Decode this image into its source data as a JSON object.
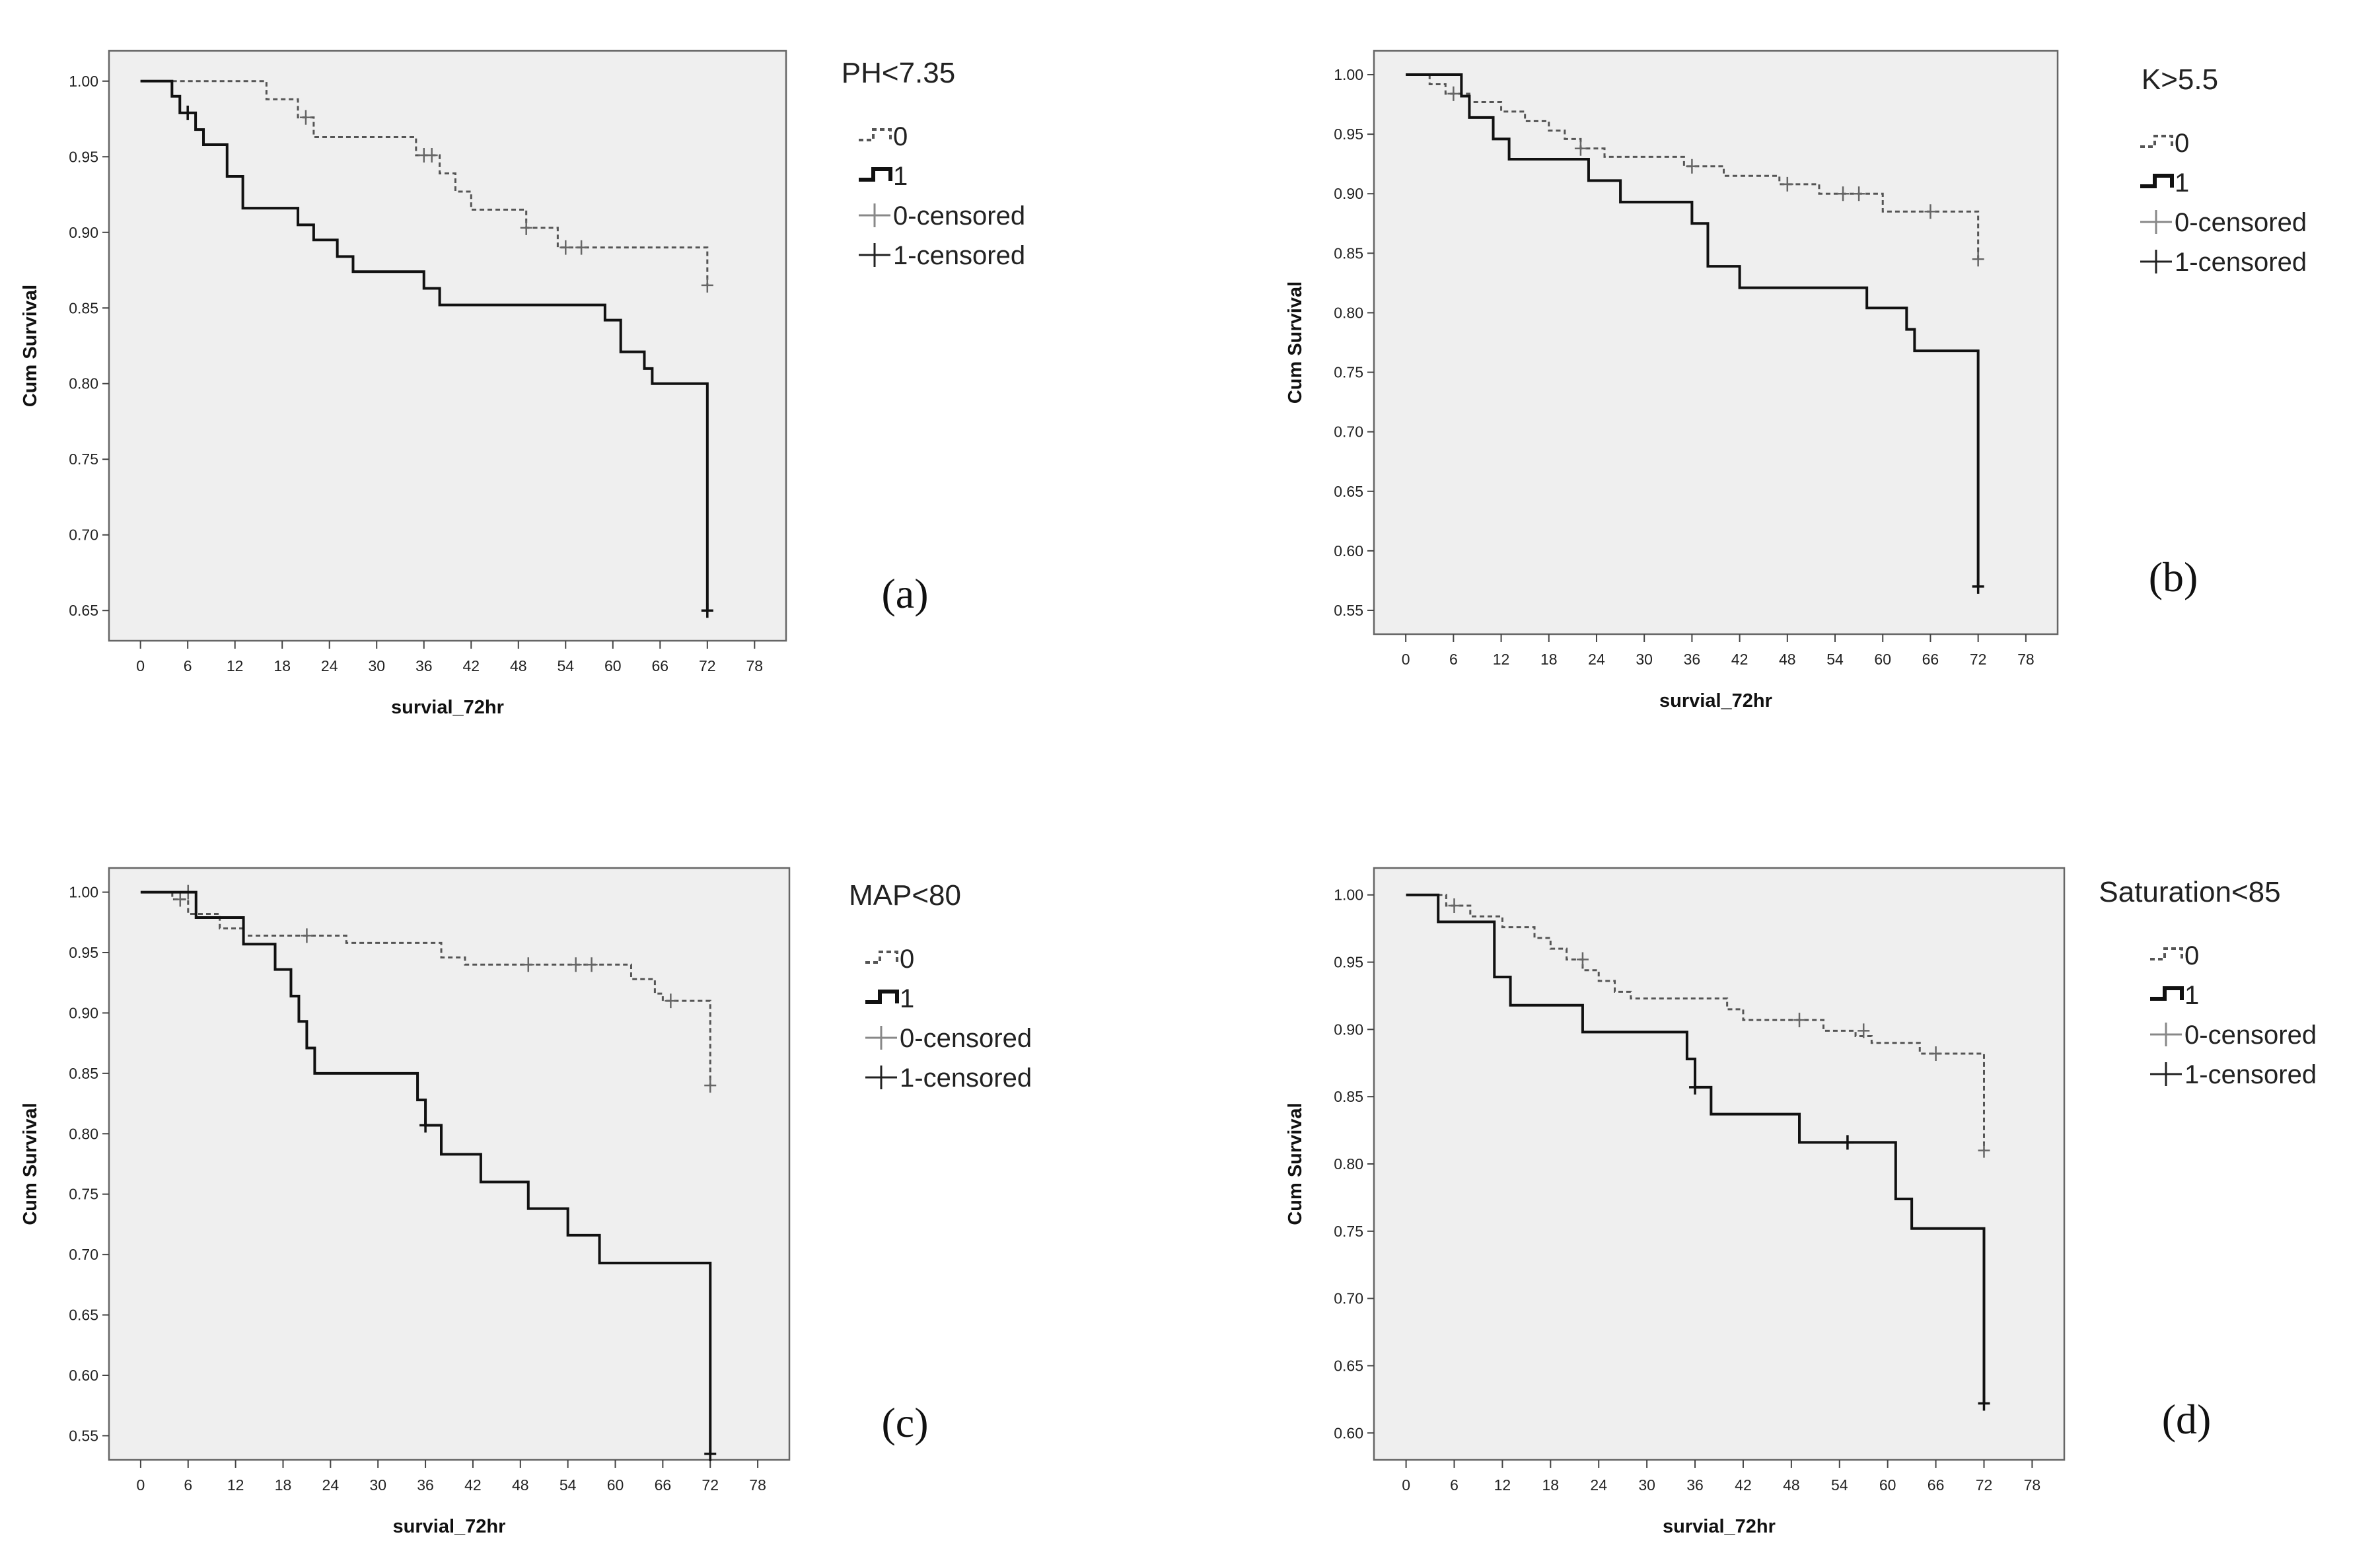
{
  "chart_data": [
    {
      "type": "line",
      "panel_label": "(a)",
      "legend_title": "PH<7.35",
      "xlabel": "survial_72hr",
      "ylabel": "Cum Survival",
      "x_ticks": [
        0,
        6,
        12,
        18,
        24,
        30,
        36,
        42,
        48,
        54,
        60,
        66,
        72,
        78
      ],
      "x_tick_labels": [
        "0",
        "6",
        "12",
        "18",
        "24",
        "30",
        "36",
        "42",
        "48",
        "54",
        "60",
        "66",
        "72",
        "78"
      ],
      "xlim": [
        -4,
        82
      ],
      "y_ticks": [
        1.0,
        0.95,
        0.9,
        0.85,
        0.8,
        0.75,
        0.7,
        0.65
      ],
      "y_tick_labels": [
        "1.00",
        "0.95",
        "0.90",
        "0.85",
        "0.80",
        "0.75",
        "0.70",
        "0.65"
      ],
      "ylim": [
        0.63,
        1.02
      ],
      "legend": [
        {
          "label": "0",
          "style": "step-dashed"
        },
        {
          "label": "1",
          "style": "step-solid"
        },
        {
          "label": "0-censored",
          "style": "cross-light"
        },
        {
          "label": "1-censored",
          "style": "cross-dark"
        }
      ],
      "series": [
        {
          "name": "0",
          "style": "dashed",
          "steps": [
            [
              0,
              1.0
            ],
            [
              16,
              0.988
            ],
            [
              20,
              0.976
            ],
            [
              22,
              0.963
            ],
            [
              35,
              0.951
            ],
            [
              38,
              0.939
            ],
            [
              40,
              0.927
            ],
            [
              42,
              0.915
            ],
            [
              49,
              0.903
            ],
            [
              53,
              0.89
            ],
            [
              72,
              0.865
            ]
          ],
          "censored": [
            [
              21,
              0.976
            ],
            [
              36,
              0.951
            ],
            [
              37,
              0.951
            ],
            [
              49,
              0.903
            ],
            [
              54,
              0.89
            ],
            [
              56,
              0.89
            ],
            [
              72,
              0.865
            ]
          ]
        },
        {
          "name": "1",
          "style": "solid",
          "steps": [
            [
              0,
              1.0
            ],
            [
              4,
              0.99
            ],
            [
              5,
              0.979
            ],
            [
              7,
              0.968
            ],
            [
              8,
              0.958
            ],
            [
              11,
              0.937
            ],
            [
              13,
              0.916
            ],
            [
              20,
              0.905
            ],
            [
              22,
              0.895
            ],
            [
              25,
              0.884
            ],
            [
              27,
              0.874
            ],
            [
              36,
              0.863
            ],
            [
              38,
              0.852
            ],
            [
              59,
              0.842
            ],
            [
              61,
              0.821
            ],
            [
              64,
              0.81
            ],
            [
              65,
              0.8
            ],
            [
              72,
              0.65
            ]
          ],
          "censored": [
            [
              6,
              0.979
            ],
            [
              72,
              0.65
            ]
          ]
        }
      ]
    },
    {
      "type": "line",
      "panel_label": "(b)",
      "legend_title": "K>5.5",
      "xlabel": "survial_72hr",
      "ylabel": "Cum Survival",
      "x_ticks": [
        0,
        6,
        12,
        18,
        24,
        30,
        36,
        42,
        48,
        54,
        60,
        66,
        72,
        78
      ],
      "x_tick_labels": [
        "0",
        "6",
        "12",
        "18",
        "24",
        "30",
        "36",
        "42",
        "48",
        "54",
        "60",
        "66",
        "72",
        "78"
      ],
      "xlim": [
        -4,
        82
      ],
      "y_ticks": [
        1.0,
        0.95,
        0.9,
        0.85,
        0.8,
        0.75,
        0.7,
        0.65,
        0.6,
        0.55
      ],
      "y_tick_labels": [
        "1.00",
        "0.95",
        "0.90",
        "0.85",
        "0.80",
        "0.75",
        "0.70",
        "0.65",
        "0.60",
        "0.55"
      ],
      "ylim": [
        0.53,
        1.02
      ],
      "legend": [
        {
          "label": "0",
          "style": "step-dashed"
        },
        {
          "label": "1",
          "style": "step-solid"
        },
        {
          "label": "0-censored",
          "style": "cross-light"
        },
        {
          "label": "1-censored",
          "style": "cross-dark"
        }
      ],
      "series": [
        {
          "name": "0",
          "style": "dashed",
          "steps": [
            [
              0,
              1.0
            ],
            [
              3,
              0.992
            ],
            [
              5,
              0.984
            ],
            [
              8,
              0.977
            ],
            [
              12,
              0.969
            ],
            [
              15,
              0.961
            ],
            [
              18,
              0.953
            ],
            [
              20,
              0.946
            ],
            [
              22,
              0.938
            ],
            [
              25,
              0.931
            ],
            [
              35,
              0.923
            ],
            [
              40,
              0.915
            ],
            [
              47,
              0.908
            ],
            [
              52,
              0.9
            ],
            [
              60,
              0.885
            ],
            [
              72,
              0.845
            ]
          ],
          "censored": [
            [
              6,
              0.984
            ],
            [
              22,
              0.938
            ],
            [
              36,
              0.923
            ],
            [
              48,
              0.908
            ],
            [
              55,
              0.9
            ],
            [
              57,
              0.9
            ],
            [
              66,
              0.885
            ],
            [
              72,
              0.845
            ]
          ]
        },
        {
          "name": "1",
          "style": "solid",
          "steps": [
            [
              0,
              1.0
            ],
            [
              7,
              0.982
            ],
            [
              8,
              0.964
            ],
            [
              11,
              0.946
            ],
            [
              13,
              0.929
            ],
            [
              23,
              0.911
            ],
            [
              27,
              0.893
            ],
            [
              36,
              0.875
            ],
            [
              38,
              0.839
            ],
            [
              42,
              0.821
            ],
            [
              58,
              0.804
            ],
            [
              63,
              0.786
            ],
            [
              64,
              0.768
            ],
            [
              72,
              0.57
            ]
          ],
          "censored": [
            [
              72,
              0.57
            ]
          ]
        }
      ]
    },
    {
      "type": "line",
      "panel_label": "(c)",
      "legend_title": "MAP<80",
      "xlabel": "survial_72hr",
      "ylabel": "Cum Survival",
      "x_ticks": [
        0,
        6,
        12,
        18,
        24,
        30,
        36,
        42,
        48,
        54,
        60,
        66,
        72,
        78
      ],
      "x_tick_labels": [
        "0",
        "6",
        "12",
        "18",
        "24",
        "30",
        "36",
        "42",
        "48",
        "54",
        "60",
        "66",
        "72",
        "78"
      ],
      "xlim": [
        -4,
        82
      ],
      "y_ticks": [
        1.0,
        0.95,
        0.9,
        0.85,
        0.8,
        0.75,
        0.7,
        0.65,
        0.6,
        0.55
      ],
      "y_tick_labels": [
        "1.00",
        "0.95",
        "0.90",
        "0.85",
        "0.80",
        "0.75",
        "0.70",
        "0.65",
        "0.60",
        "0.55"
      ],
      "ylim": [
        0.53,
        1.02
      ],
      "legend": [
        {
          "label": "0",
          "style": "step-dashed"
        },
        {
          "label": "1",
          "style": "step-solid"
        },
        {
          "label": "0-censored",
          "style": "cross-light"
        },
        {
          "label": "1-censored",
          "style": "cross-dark"
        }
      ],
      "series": [
        {
          "name": "0",
          "style": "dashed",
          "steps": [
            [
              0,
              1.0
            ],
            [
              4,
              0.994
            ],
            [
              6,
              0.982
            ],
            [
              10,
              0.97
            ],
            [
              13,
              0.964
            ],
            [
              26,
              0.958
            ],
            [
              38,
              0.946
            ],
            [
              41,
              0.94
            ],
            [
              62,
              0.928
            ],
            [
              65,
              0.916
            ],
            [
              66,
              0.91
            ],
            [
              72,
              0.84
            ]
          ],
          "censored": [
            [
              5,
              0.994
            ],
            [
              6,
              1.0
            ],
            [
              21,
              0.964
            ],
            [
              49,
              0.94
            ],
            [
              55,
              0.94
            ],
            [
              57,
              0.94
            ],
            [
              67,
              0.91
            ],
            [
              72,
              0.84
            ]
          ]
        },
        {
          "name": "1",
          "style": "solid",
          "steps": [
            [
              0,
              1.0
            ],
            [
              7,
              0.979
            ],
            [
              13,
              0.957
            ],
            [
              17,
              0.936
            ],
            [
              19,
              0.914
            ],
            [
              20,
              0.893
            ],
            [
              21,
              0.871
            ],
            [
              22,
              0.85
            ],
            [
              35,
              0.828
            ],
            [
              36,
              0.807
            ],
            [
              38,
              0.783
            ],
            [
              43,
              0.76
            ],
            [
              49,
              0.738
            ],
            [
              54,
              0.716
            ],
            [
              58,
              0.693
            ],
            [
              72,
              0.535
            ]
          ],
          "censored": [
            [
              36,
              0.807
            ],
            [
              72,
              0.535
            ]
          ]
        }
      ]
    },
    {
      "type": "line",
      "panel_label": "(d)",
      "legend_title": "Saturation<85",
      "xlabel": "survial_72hr",
      "ylabel": "Cum Survival",
      "x_ticks": [
        0,
        6,
        12,
        18,
        24,
        30,
        36,
        42,
        48,
        54,
        60,
        66,
        72,
        78
      ],
      "x_tick_labels": [
        "0",
        "6",
        "12",
        "18",
        "24",
        "30",
        "36",
        "42",
        "48",
        "54",
        "60",
        "66",
        "72",
        "78"
      ],
      "xlim": [
        -4,
        82
      ],
      "y_ticks": [
        1.0,
        0.95,
        0.9,
        0.85,
        0.8,
        0.75,
        0.7,
        0.65,
        0.6
      ],
      "y_tick_labels": [
        "1.00",
        "0.95",
        "0.90",
        "0.85",
        "0.80",
        "0.75",
        "0.70",
        "0.65",
        "0.60"
      ],
      "ylim": [
        0.58,
        1.02
      ],
      "legend": [
        {
          "label": "0",
          "style": "step-dashed"
        },
        {
          "label": "1",
          "style": "step-solid"
        },
        {
          "label": "0-censored",
          "style": "cross-light"
        },
        {
          "label": "1-censored",
          "style": "cross-dark"
        }
      ],
      "series": [
        {
          "name": "0",
          "style": "dashed",
          "steps": [
            [
              0,
              1.0
            ],
            [
              5,
              0.992
            ],
            [
              8,
              0.984
            ],
            [
              12,
              0.976
            ],
            [
              16,
              0.968
            ],
            [
              18,
              0.96
            ],
            [
              20,
              0.952
            ],
            [
              22,
              0.944
            ],
            [
              24,
              0.936
            ],
            [
              26,
              0.928
            ],
            [
              28,
              0.923
            ],
            [
              40,
              0.915
            ],
            [
              42,
              0.907
            ],
            [
              52,
              0.899
            ],
            [
              56,
              0.895
            ],
            [
              58,
              0.89
            ],
            [
              64,
              0.882
            ],
            [
              72,
              0.81
            ]
          ],
          "censored": [
            [
              6,
              0.992
            ],
            [
              22,
              0.952
            ],
            [
              49,
              0.907
            ],
            [
              57,
              0.899
            ],
            [
              66,
              0.882
            ],
            [
              72,
              0.81
            ]
          ]
        },
        {
          "name": "1",
          "style": "solid",
          "steps": [
            [
              0,
              1.0
            ],
            [
              4,
              0.98
            ],
            [
              11,
              0.939
            ],
            [
              13,
              0.918
            ],
            [
              22,
              0.898
            ],
            [
              35,
              0.878
            ],
            [
              36,
              0.857
            ],
            [
              38,
              0.837
            ],
            [
              49,
              0.816
            ],
            [
              61,
              0.774
            ],
            [
              63,
              0.752
            ],
            [
              72,
              0.622
            ]
          ],
          "censored": [
            [
              36,
              0.857
            ],
            [
              55,
              0.816
            ],
            [
              72,
              0.622
            ]
          ]
        }
      ]
    }
  ]
}
